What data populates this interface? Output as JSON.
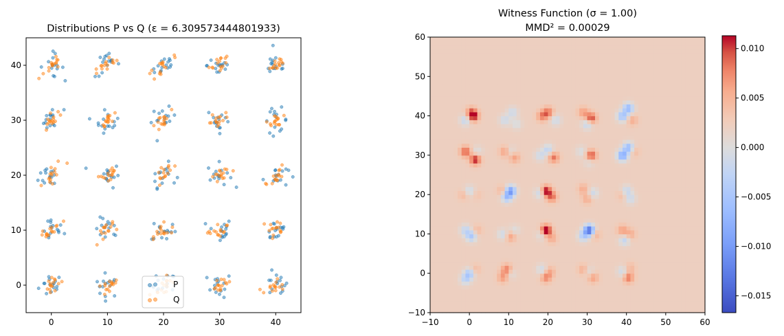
{
  "chart_data": [
    {
      "type": "scatter",
      "title": "Distributions P vs Q (ε = 6.309573444801933)",
      "xlim": [
        -4.5,
        44.5
      ],
      "ylim": [
        -5,
        45
      ],
      "xticks": [
        0,
        10,
        20,
        30,
        40
      ],
      "yticks": [
        0,
        10,
        20,
        30,
        40
      ],
      "grid": false,
      "legend_position": "bottom-center",
      "cluster_centers": [
        0,
        10,
        20,
        30,
        40
      ],
      "points_per_cluster_approx": 15,
      "series": [
        {
          "name": "P",
          "color": "#1f77b4",
          "alpha": 0.5,
          "distribution": "grid of 25 gaussian clusters, roughly isotropic"
        },
        {
          "name": "Q",
          "color": "#ff7f0e",
          "alpha": 0.5,
          "distribution": "grid of 25 gaussian clusters, elongated/correlated"
        }
      ]
    },
    {
      "type": "heatmap",
      "title": "Witness Function (σ = 1.00)",
      "subtitle": "MMD² = 0.00029",
      "xlim": [
        -10,
        60
      ],
      "ylim": [
        -10,
        60
      ],
      "xticks": [
        -10,
        0,
        10,
        20,
        30,
        40,
        50,
        60
      ],
      "yticks": [
        -10,
        0,
        10,
        20,
        30,
        40,
        50,
        60
      ],
      "colormap": "coolwarm",
      "colorbar_range": [
        -0.0167,
        0.0113
      ],
      "colorbar_ticks": [
        0.01,
        0.005,
        0.0,
        -0.005,
        -0.01,
        -0.015
      ],
      "colorbar_tick_labels": [
        "0.010",
        "0.005",
        "0.000",
        "−0.005",
        "−0.010",
        "−0.015"
      ],
      "background_value": 0.0022,
      "blobs": [
        {
          "x": 1,
          "y": 40,
          "v": 0.01
        },
        {
          "x": -1,
          "y": 39,
          "v": -0.004
        },
        {
          "x": 0.5,
          "y": 41,
          "v": 0.006
        },
        {
          "x": 11,
          "y": 41,
          "v": -0.003
        },
        {
          "x": 9,
          "y": 39,
          "v": -0.003
        },
        {
          "x": 12,
          "y": 38,
          "v": -0.002
        },
        {
          "x": 20,
          "y": 41,
          "v": 0.007
        },
        {
          "x": 18.5,
          "y": 40,
          "v": 0.006
        },
        {
          "x": 22,
          "y": 39,
          "v": -0.003
        },
        {
          "x": 29,
          "y": 41,
          "v": 0.005
        },
        {
          "x": 31,
          "y": 39.5,
          "v": 0.009
        },
        {
          "x": 30,
          "y": 38,
          "v": -0.004
        },
        {
          "x": 40.5,
          "y": 42,
          "v": -0.008
        },
        {
          "x": 39,
          "y": 40,
          "v": -0.007
        },
        {
          "x": 41.5,
          "y": 39,
          "v": 0.004
        },
        {
          "x": -1,
          "y": 31,
          "v": 0.008
        },
        {
          "x": 1.5,
          "y": 29,
          "v": 0.01
        },
        {
          "x": 2,
          "y": 31,
          "v": -0.002
        },
        {
          "x": 9,
          "y": 31,
          "v": 0.005
        },
        {
          "x": 11.5,
          "y": 29.5,
          "v": 0.005
        },
        {
          "x": 10.5,
          "y": 31,
          "v": -0.002
        },
        {
          "x": 18,
          "y": 30,
          "v": -0.003
        },
        {
          "x": 20,
          "y": 31.5,
          "v": -0.004
        },
        {
          "x": 21.5,
          "y": 29.5,
          "v": 0.007
        },
        {
          "x": 28.5,
          "y": 31,
          "v": -0.002
        },
        {
          "x": 31,
          "y": 30,
          "v": 0.009
        },
        {
          "x": 30.5,
          "y": 28.5,
          "v": -0.002
        },
        {
          "x": 40.5,
          "y": 32,
          "v": -0.008
        },
        {
          "x": 39,
          "y": 30,
          "v": -0.01
        },
        {
          "x": 42,
          "y": 31,
          "v": 0.003
        },
        {
          "x": 0,
          "y": 21,
          "v": -0.003
        },
        {
          "x": -1.5,
          "y": 20,
          "v": 0.003
        },
        {
          "x": 2,
          "y": 20,
          "v": 0.002
        },
        {
          "x": 10.5,
          "y": 21,
          "v": -0.011
        },
        {
          "x": 9.5,
          "y": 19.5,
          "v": -0.007
        },
        {
          "x": 8.5,
          "y": 21,
          "v": 0.004
        },
        {
          "x": 19.5,
          "y": 21,
          "v": 0.011
        },
        {
          "x": 21,
          "y": 19.5,
          "v": 0.007
        },
        {
          "x": 18,
          "y": 20.5,
          "v": -0.004
        },
        {
          "x": 29,
          "y": 21.5,
          "v": 0.004
        },
        {
          "x": 31.5,
          "y": 20.5,
          "v": -0.003
        },
        {
          "x": 30,
          "y": 19,
          "v": 0.004
        },
        {
          "x": 40,
          "y": 21,
          "v": -0.004
        },
        {
          "x": 41,
          "y": 19,
          "v": -0.003
        },
        {
          "x": 39,
          "y": 20,
          "v": 0.003
        },
        {
          "x": -1,
          "y": 11,
          "v": -0.004
        },
        {
          "x": 0.5,
          "y": 9.5,
          "v": -0.006
        },
        {
          "x": 2,
          "y": 11,
          "v": 0.003
        },
        {
          "x": 8.5,
          "y": 10,
          "v": -0.003
        },
        {
          "x": 10.5,
          "y": 9.5,
          "v": 0.005
        },
        {
          "x": 11.5,
          "y": 11,
          "v": -0.002
        },
        {
          "x": 18.5,
          "y": 10,
          "v": -0.003
        },
        {
          "x": 19.5,
          "y": 11,
          "v": 0.013
        },
        {
          "x": 21,
          "y": 9,
          "v": 0.004
        },
        {
          "x": 30.5,
          "y": 11,
          "v": -0.016
        },
        {
          "x": 29,
          "y": 9.5,
          "v": -0.005
        },
        {
          "x": 32,
          "y": 10,
          "v": 0.004
        },
        {
          "x": 39,
          "y": 11,
          "v": 0.005
        },
        {
          "x": 41,
          "y": 10,
          "v": 0.004
        },
        {
          "x": 39.5,
          "y": 8.5,
          "v": -0.004
        },
        {
          "x": 0,
          "y": 0,
          "v": -0.006
        },
        {
          "x": -1,
          "y": -1.5,
          "v": -0.004
        },
        {
          "x": 1.5,
          "y": 1,
          "v": 0.003
        },
        {
          "x": 9.5,
          "y": 1,
          "v": 0.007
        },
        {
          "x": 8.5,
          "y": -1,
          "v": 0.005
        },
        {
          "x": 10.5,
          "y": 0,
          "v": -0.002
        },
        {
          "x": 19.5,
          "y": -1,
          "v": 0.006
        },
        {
          "x": 18.5,
          "y": 1,
          "v": -0.003
        },
        {
          "x": 20.5,
          "y": 0.5,
          "v": 0.004
        },
        {
          "x": 29,
          "y": 1,
          "v": 0.004
        },
        {
          "x": 31.5,
          "y": -1,
          "v": 0.005
        },
        {
          "x": 30.5,
          "y": 0.5,
          "v": -0.002
        },
        {
          "x": 40.5,
          "y": -1,
          "v": 0.007
        },
        {
          "x": 39,
          "y": 0.5,
          "v": -0.003
        },
        {
          "x": 41,
          "y": 1.5,
          "v": 0.003
        }
      ]
    }
  ]
}
